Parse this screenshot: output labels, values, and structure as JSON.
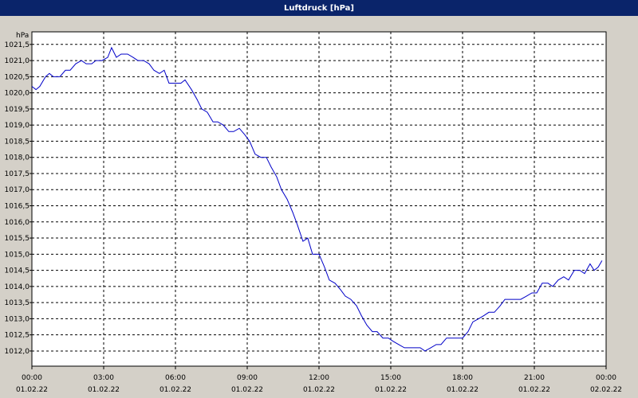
{
  "chart_data": {
    "type": "line",
    "title": "Luftdruck [hPa]",
    "y_axis_label": "hPa",
    "color": "#0000c8",
    "grid": true,
    "xlim": [
      0,
      24
    ],
    "ylim": [
      1011.53,
      1021.89
    ],
    "xticks": [
      {
        "value": 0,
        "label": "00:00",
        "date": "01.02.22"
      },
      {
        "value": 3,
        "label": "03:00",
        "date": "01.02.22"
      },
      {
        "value": 6,
        "label": "06:00",
        "date": "01.02.22"
      },
      {
        "value": 9,
        "label": "09:00",
        "date": "01.02.22"
      },
      {
        "value": 12,
        "label": "12:00",
        "date": "01.02.22"
      },
      {
        "value": 15,
        "label": "15:00",
        "date": "01.02.22"
      },
      {
        "value": 18,
        "label": "18:00",
        "date": "01.02.22"
      },
      {
        "value": 21,
        "label": "21:00",
        "date": "01.02.22"
      },
      {
        "value": 24,
        "label": "00:00",
        "date": "02.02.22"
      }
    ],
    "yticks": [
      {
        "value": 1012,
        "label": "1012,0"
      },
      {
        "value": 1012.5,
        "label": "1012,5"
      },
      {
        "value": 1013,
        "label": "1013,0"
      },
      {
        "value": 1013.5,
        "label": "1013,5"
      },
      {
        "value": 1014,
        "label": "1014,0"
      },
      {
        "value": 1014.5,
        "label": "1014,5"
      },
      {
        "value": 1015,
        "label": "1015,0"
      },
      {
        "value": 1015.5,
        "label": "1015,5"
      },
      {
        "value": 1016,
        "label": "1016,0"
      },
      {
        "value": 1016.5,
        "label": "1016,5"
      },
      {
        "value": 1017,
        "label": "1017,0"
      },
      {
        "value": 1017.5,
        "label": "1017,5"
      },
      {
        "value": 1018,
        "label": "1018,0"
      },
      {
        "value": 1018.5,
        "label": "1018,5"
      },
      {
        "value": 1019,
        "label": "1019,0"
      },
      {
        "value": 1019.5,
        "label": "1019,5"
      },
      {
        "value": 1020,
        "label": "1020,0"
      },
      {
        "value": 1020.5,
        "label": "1020,5"
      },
      {
        "value": 1021,
        "label": "1021,0"
      },
      {
        "value": 1021.5,
        "label": "1021,5"
      }
    ],
    "x": [
      0,
      0.17,
      0.33,
      0.57,
      0.73,
      0.9,
      1.17,
      1.4,
      1.6,
      1.83,
      2.07,
      2.27,
      2.5,
      2.67,
      2.93,
      3.17,
      3.33,
      3.53,
      3.73,
      4,
      4.23,
      4.43,
      4.67,
      4.9,
      5.1,
      5.33,
      5.53,
      5.73,
      6,
      6.23,
      6.4,
      6.67,
      6.9,
      7.1,
      7.33,
      7.57,
      7.77,
      8,
      8.23,
      8.43,
      8.67,
      8.9,
      9.1,
      9.33,
      9.57,
      9.8,
      10,
      10.23,
      10.43,
      10.67,
      10.9,
      11.1,
      11.33,
      11.53,
      11.73,
      12,
      12.23,
      12.43,
      12.67,
      12.9,
      13.1,
      13.33,
      13.57,
      13.77,
      14,
      14.23,
      14.43,
      14.67,
      14.9,
      15.1,
      15.33,
      15.57,
      15.77,
      16,
      16.23,
      16.43,
      16.67,
      16.9,
      17.1,
      17.33,
      17.57,
      17.77,
      18,
      18.23,
      18.43,
      18.67,
      18.9,
      19.1,
      19.33,
      19.57,
      19.77,
      20,
      20.23,
      20.43,
      20.67,
      20.9,
      21.1,
      21.33,
      21.57,
      21.77,
      22,
      22.23,
      22.43,
      22.67,
      22.9,
      23.1,
      23.33,
      23.5,
      23.67,
      23.83
    ],
    "values": [
      1020.2,
      1020.1,
      1020.2,
      1020.5,
      1020.6,
      1020.5,
      1020.5,
      1020.7,
      1020.7,
      1020.9,
      1021.0,
      1020.9,
      1020.9,
      1021.0,
      1021.0,
      1021.1,
      1021.4,
      1021.1,
      1021.2,
      1021.2,
      1021.1,
      1021.0,
      1021.0,
      1020.9,
      1020.7,
      1020.6,
      1020.7,
      1020.3,
      1020.3,
      1020.3,
      1020.4,
      1020.1,
      1019.8,
      1019.5,
      1019.4,
      1019.1,
      1019.1,
      1019.0,
      1018.8,
      1018.8,
      1018.9,
      1018.7,
      1018.5,
      1018.1,
      1018.0,
      1018.0,
      1017.7,
      1017.4,
      1017.0,
      1016.7,
      1016.3,
      1015.9,
      1015.4,
      1015.5,
      1015.0,
      1015.0,
      1014.6,
      1014.2,
      1014.1,
      1013.9,
      1013.7,
      1013.6,
      1013.4,
      1013.1,
      1012.8,
      1012.6,
      1012.6,
      1012.4,
      1012.4,
      1012.3,
      1012.2,
      1012.1,
      1012.1,
      1012.1,
      1012.1,
      1012.0,
      1012.1,
      1012.2,
      1012.2,
      1012.4,
      1012.4,
      1012.4,
      1012.4,
      1012.6,
      1012.9,
      1013.0,
      1013.1,
      1013.2,
      1013.2,
      1013.4,
      1013.6,
      1013.6,
      1013.6,
      1013.6,
      1013.7,
      1013.8,
      1013.8,
      1014.1,
      1014.1,
      1014.0,
      1014.2,
      1014.3,
      1014.2,
      1014.5,
      1014.5,
      1014.4,
      1014.7,
      1014.5,
      1014.6,
      1014.8
    ]
  }
}
